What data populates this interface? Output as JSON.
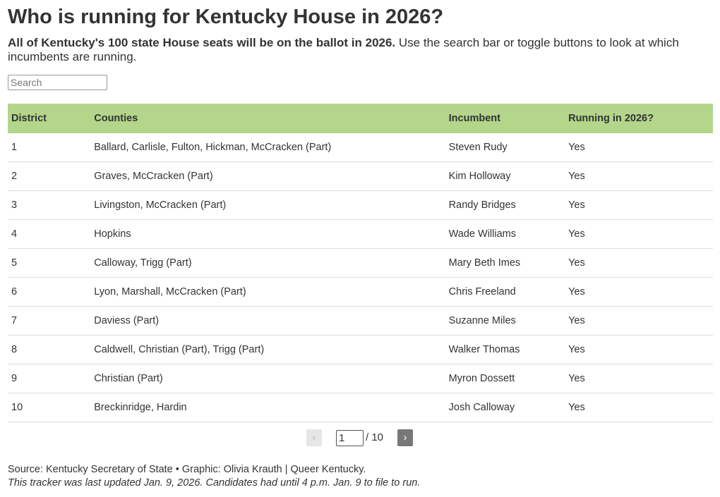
{
  "header": {
    "title": "Who is running for Kentucky House in 2026?",
    "subtitle_bold": "All of Kentucky's 100 state House seats will be on the ballot in 2026.",
    "subtitle_rest": "Use the search bar or toggle buttons to look at which incumbents are running."
  },
  "search": {
    "placeholder": "Search"
  },
  "table": {
    "columns": [
      "District",
      "Counties",
      "Incumbent",
      "Running in 2026?"
    ],
    "rows": [
      [
        1,
        "Ballard, Carlisle, Fulton, Hickman, McCracken (Part)",
        "Steven Rudy",
        "Yes"
      ],
      [
        2,
        "Graves, McCracken (Part)",
        "Kim Holloway",
        "Yes"
      ],
      [
        3,
        "Livingston, McCracken (Part)",
        "Randy Bridges",
        "Yes"
      ],
      [
        4,
        "Hopkins",
        "Wade Williams",
        "Yes"
      ],
      [
        5,
        "Calloway, Trigg (Part)",
        "Mary Beth Imes",
        "Yes"
      ],
      [
        6,
        "Lyon, Marshall, McCracken (Part)",
        "Chris Freeland",
        "Yes"
      ],
      [
        7,
        "Daviess (Part)",
        "Suzanne Miles",
        "Yes"
      ],
      [
        8,
        "Caldwell, Christian (Part), Trigg (Part)",
        "Walker Thomas",
        "Yes"
      ],
      [
        9,
        "Christian (Part)",
        "Myron Dossett",
        "Yes"
      ],
      [
        10,
        "Breckinridge, Hardin",
        "Josh Calloway",
        "Yes"
      ]
    ]
  },
  "pagination": {
    "prev": "‹",
    "current": 1,
    "total": "/ 10",
    "next": "›"
  },
  "footer": {
    "source": "Source: Kentucky Secretary of State • Graphic: Olivia Krauth | Queer Kentucky.",
    "note": "This tracker was last updated Jan. 9, 2026. Candidates had until 4 p.m. Jan. 9 to file to run."
  }
}
